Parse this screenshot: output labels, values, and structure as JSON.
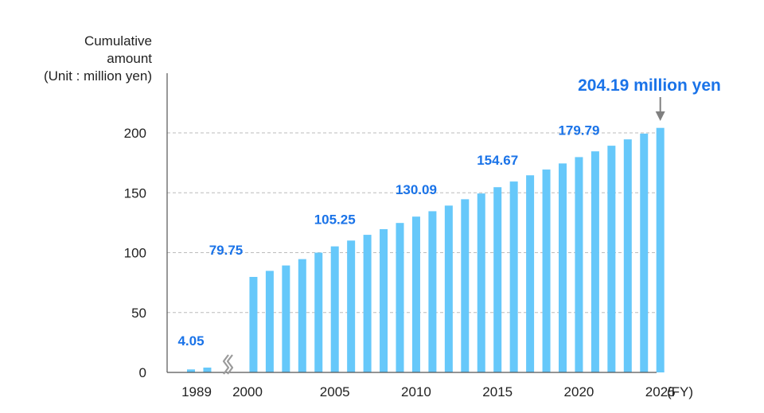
{
  "chart_data": {
    "type": "bar",
    "ylabel": [
      "Cumulative",
      "amount",
      "(Unit : million yen)"
    ],
    "xunit": "(FY)",
    "ylim": [
      0,
      210
    ],
    "yticks": [
      0,
      50,
      100,
      150,
      200
    ],
    "grid": true,
    "colors": {
      "bar": "#66c8fa",
      "label": "#1a73e8",
      "grid": "#bbbbbb",
      "axis": "#555555",
      "arrow": "#808080",
      "break": "#9a9a9a"
    },
    "axis_break_after": "1990",
    "xtick_labels": [
      "1989",
      "2000",
      "2005",
      "2010",
      "2015",
      "2020",
      "2025"
    ],
    "categories": [
      "1989",
      "1990",
      "2000",
      "2001",
      "2002",
      "2003",
      "2004",
      "2005",
      "2006",
      "2007",
      "2008",
      "2009",
      "2010",
      "2011",
      "2012",
      "2013",
      "2014",
      "2015",
      "2016",
      "2017",
      "2018",
      "2019",
      "2020",
      "2021",
      "2022",
      "2023",
      "2024",
      "2025"
    ],
    "values": [
      2.5,
      4.05,
      79.75,
      84.8,
      89.3,
      94.6,
      100.0,
      105.25,
      110.1,
      114.9,
      119.6,
      124.8,
      130.09,
      134.6,
      139.3,
      144.6,
      149.4,
      154.67,
      159.4,
      164.6,
      169.4,
      174.5,
      179.79,
      184.6,
      189.3,
      194.6,
      199.4,
      204.19
    ],
    "data_labels": [
      {
        "category": "1990",
        "text": "4.05"
      },
      {
        "category": "2000",
        "text": "79.75"
      },
      {
        "category": "2005",
        "text": "105.25"
      },
      {
        "category": "2010",
        "text": "130.09"
      },
      {
        "category": "2015",
        "text": "154.67"
      },
      {
        "category": "2020",
        "text": "179.79"
      }
    ],
    "annotation": {
      "category": "2025",
      "text": "204.19 million yen"
    }
  }
}
